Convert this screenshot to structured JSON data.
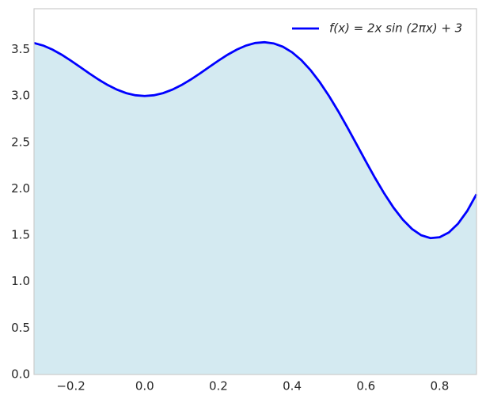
{
  "chart_data": {
    "type": "line",
    "x": [
      -0.3,
      -0.275,
      -0.25,
      -0.225,
      -0.2,
      -0.175,
      -0.15,
      -0.125,
      -0.1,
      -0.075,
      -0.05,
      -0.025,
      0,
      0.025,
      0.05,
      0.075,
      0.1,
      0.125,
      0.15,
      0.175,
      0.2,
      0.225,
      0.25,
      0.275,
      0.3,
      0.325,
      0.35,
      0.375,
      0.4,
      0.425,
      0.45,
      0.475,
      0.5,
      0.525,
      0.55,
      0.575,
      0.6,
      0.625,
      0.65,
      0.675,
      0.7,
      0.725,
      0.75,
      0.775,
      0.8,
      0.825,
      0.85,
      0.875,
      0.9
    ],
    "series": [
      {
        "name": "f(x) = 2x sin (2πx) + 3",
        "color": "#0000ff",
        "fill": "#d4eaf1",
        "values": [
          3.5706,
          3.5432,
          3.5,
          3.4445,
          3.3804,
          3.3119,
          3.2427,
          3.1768,
          3.1176,
          3.0681,
          3.0309,
          3.0078,
          3,
          3.0078,
          3.0309,
          3.0681,
          3.1176,
          3.1768,
          3.2427,
          3.3119,
          3.3804,
          3.4445,
          3.5,
          3.5432,
          3.5706,
          3.5792,
          3.5663,
          3.5303,
          3.4702,
          3.3859,
          3.2781,
          3.1486,
          3,
          2.8357,
          2.6601,
          2.4779,
          2.2947,
          2.1161,
          1.9483,
          1.7971,
          1.6685,
          1.5679,
          1.5,
          1.4691,
          1.4783,
          1.5298,
          1.6247,
          1.7626,
          1.942
        ]
      }
    ],
    "xlim": [
      -0.3,
      0.9
    ],
    "ylim": [
      0,
      3.94
    ],
    "xticks": [
      {
        "value": -0.2,
        "label": "−0.2"
      },
      {
        "value": 0,
        "label": "0.0"
      },
      0.2,
      0.4,
      0.6,
      0.8
    ],
    "yticks": [
      {
        "value": 0,
        "label": "0.0"
      },
      0.5,
      {
        "value": 1,
        "label": "1.0"
      },
      1.5,
      {
        "value": 2,
        "label": "2.0"
      },
      2.5,
      {
        "value": 3,
        "label": "3.0"
      },
      3.5
    ],
    "grid": false,
    "legend": "upper right"
  }
}
